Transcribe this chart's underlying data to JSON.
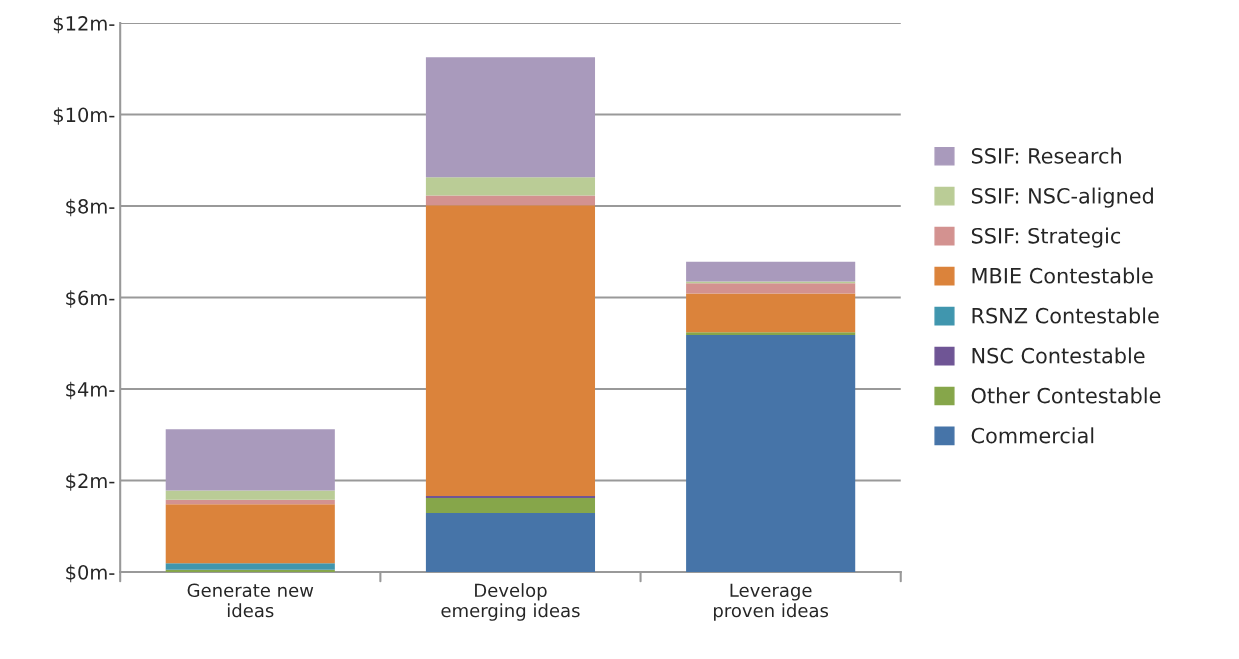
{
  "chart_data": {
    "type": "bar",
    "stacked": true,
    "categories": [
      "Generate new\nideas",
      "Develop\nemerging ideas",
      "Leverage\nproven ideas"
    ],
    "series": [
      {
        "name": "Commercial",
        "color": "#4674a8",
        "values": [
          0,
          1.29,
          5.18
        ]
      },
      {
        "name": "Other Contestable",
        "color": "#86a64a",
        "values": [
          0.05,
          0.33,
          0.06
        ]
      },
      {
        "name": "NSC Contestable",
        "color": "#6f5595",
        "values": [
          0,
          0.04,
          0
        ]
      },
      {
        "name": "RSNZ Contestable",
        "color": "#4096ae",
        "values": [
          0.14,
          0,
          0
        ]
      },
      {
        "name": "MBIE Contestable",
        "color": "#db833b",
        "values": [
          1.29,
          6.36,
          0.85
        ]
      },
      {
        "name": "SSIF: Strategic",
        "color": "#d39290",
        "values": [
          0.1,
          0.21,
          0.22
        ]
      },
      {
        "name": "SSIF: NSC-aligned",
        "color": "#bacc96",
        "values": [
          0.2,
          0.4,
          0.04
        ]
      },
      {
        "name": "SSIF: Research",
        "color": "#a99abc",
        "values": [
          1.34,
          2.62,
          0.43
        ]
      }
    ],
    "ylim": [
      0,
      12
    ],
    "yticks": [
      {
        "value": 0,
        "label": "$0m-"
      },
      {
        "value": 2,
        "label": "$2m-"
      },
      {
        "value": 4,
        "label": "$4m-"
      },
      {
        "value": 6,
        "label": "$6m-"
      },
      {
        "value": 8,
        "label": "$8m-"
      },
      {
        "value": 10,
        "label": "$10m-"
      },
      {
        "value": 12,
        "label": "$12m-"
      }
    ],
    "grid": "y",
    "legend": "right"
  }
}
